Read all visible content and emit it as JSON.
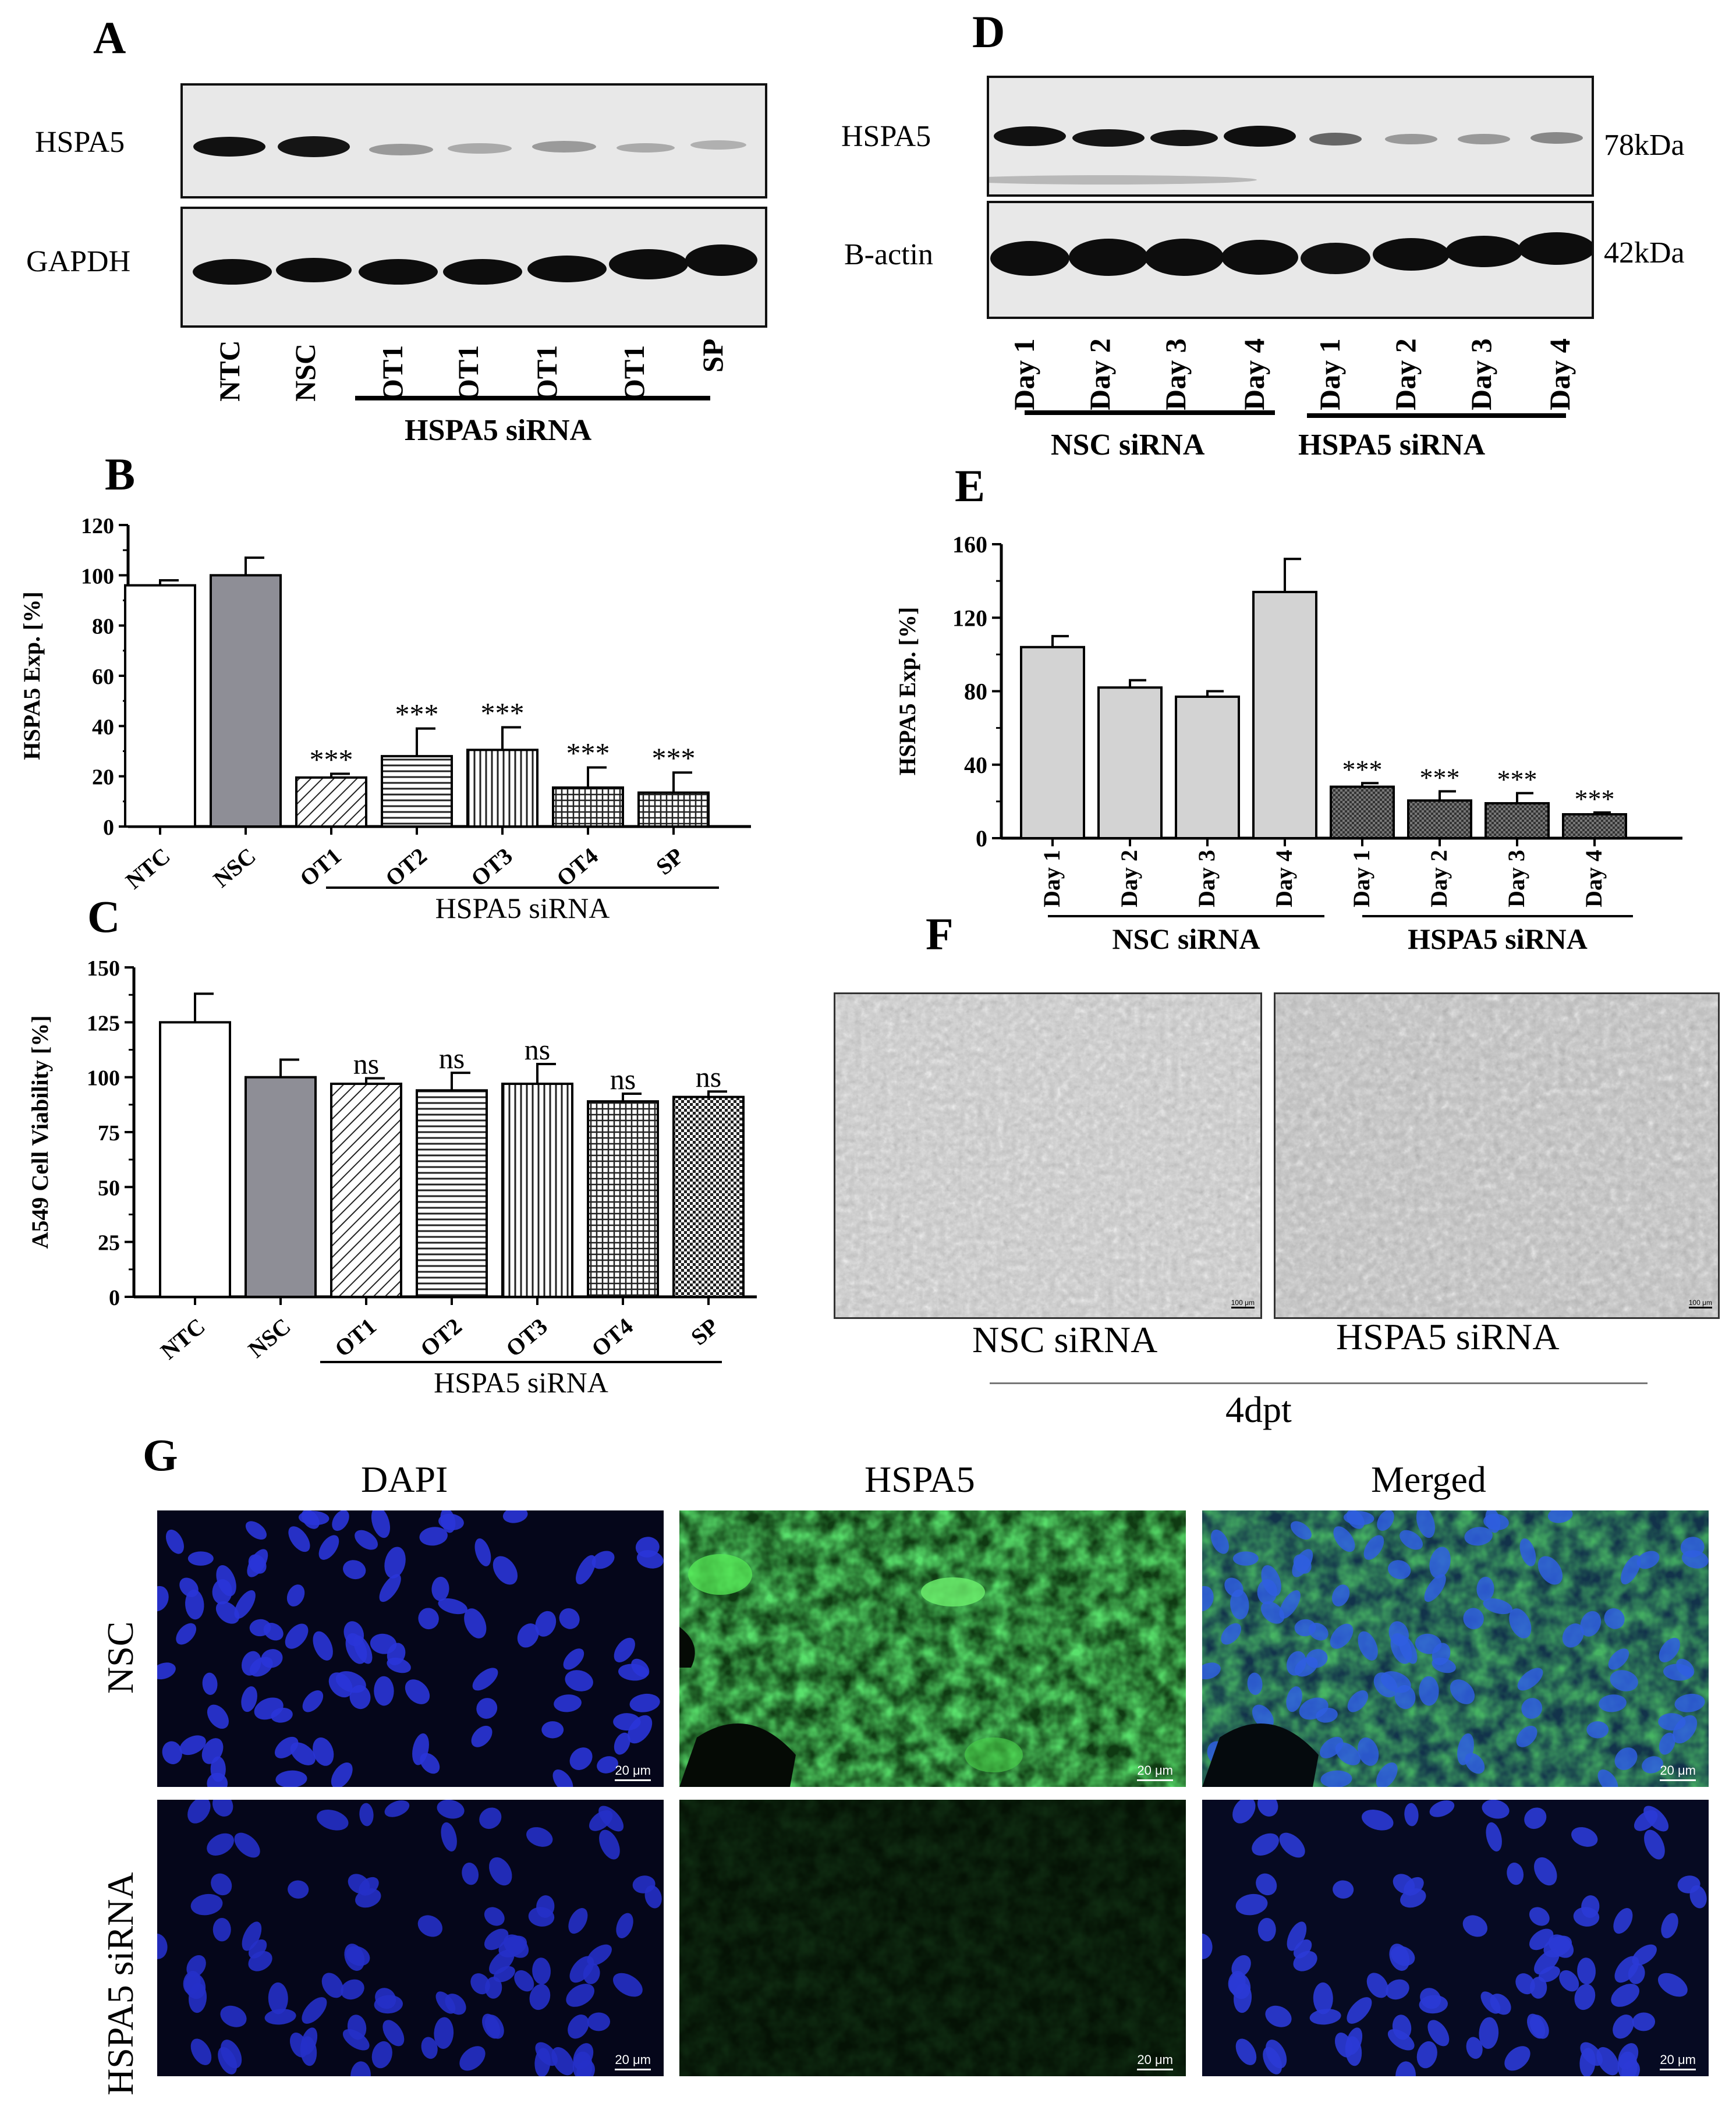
{
  "panels": {
    "A": "A",
    "B": "B",
    "C": "C",
    "D": "D",
    "E": "E",
    "F": "F",
    "G": "G"
  },
  "panelA": {
    "row_labels": [
      "HSPA5",
      "GAPDH"
    ],
    "lanes": [
      "NTC",
      "NSC",
      "OT1",
      "OT1",
      "OT1",
      "OT1",
      "SP"
    ],
    "group_label": "HSPA5 siRNA"
  },
  "panelD": {
    "row_labels": [
      "HSPA5",
      "B-actin"
    ],
    "mw": [
      "78kDa",
      "42kDa"
    ],
    "lanes": [
      "Day 1",
      "Day 2",
      "Day 3",
      "Day 4",
      "Day 1",
      "Day 2",
      "Day 3",
      "Day 4"
    ],
    "groups": [
      "NSC siRNA",
      "HSPA5 siRNA"
    ]
  },
  "panelF": {
    "captions": [
      "NSC siRNA",
      "HSPA5 siRNA"
    ],
    "scale": "100 μm",
    "group_label": "4dpt"
  },
  "panelG": {
    "columns": [
      "DAPI",
      "HSPA5",
      "Merged"
    ],
    "rows": [
      "NSC",
      "HSPA5 siRNA"
    ],
    "scale": "20 μm"
  },
  "chart_data": [
    {
      "id": "B",
      "type": "bar",
      "ylabel": "HSPA5 Exp. [%]",
      "categories": [
        "NTC",
        "NSC",
        "OT1",
        "OT2",
        "OT3",
        "OT4",
        "SP"
      ],
      "values": [
        96,
        100,
        19.5,
        28,
        30.5,
        15.5,
        13.5
      ],
      "errors": [
        2,
        7,
        1.5,
        11,
        9,
        8,
        8
      ],
      "annotations": [
        "",
        "",
        "***",
        "***",
        "***",
        "***",
        "***"
      ],
      "fills": [
        "white",
        "gray",
        "diag",
        "hlines",
        "vlines",
        "grid",
        "grid"
      ],
      "ylim": [
        0,
        120
      ],
      "yticks": [
        0,
        20,
        40,
        60,
        80,
        100,
        120
      ],
      "group_label": "HSPA5 siRNA"
    },
    {
      "id": "C",
      "type": "bar",
      "ylabel": "A549 Cell Viability [%]",
      "categories": [
        "NTC",
        "NSC",
        "OT1",
        "OT2",
        "OT3",
        "OT4",
        "SP"
      ],
      "values": [
        125,
        100,
        97,
        94,
        97,
        89,
        91
      ],
      "errors": [
        13,
        8,
        2.5,
        8,
        9,
        3.5,
        2.5
      ],
      "annotations": [
        "",
        "",
        "ns",
        "ns",
        "ns",
        "ns",
        "ns"
      ],
      "fills": [
        "white",
        "gray",
        "diag",
        "hlines",
        "vlines",
        "grid",
        "dots"
      ],
      "ylim": [
        0,
        150
      ],
      "yticks": [
        0,
        25,
        50,
        75,
        100,
        125,
        150
      ],
      "group_label": "HSPA5 siRNA"
    },
    {
      "id": "E",
      "type": "bar",
      "ylabel": "HSPA5 Exp. [%]",
      "categories": [
        "Day 1",
        "Day 2",
        "Day 3",
        "Day 4",
        "Day 1",
        "Day 2",
        "Day 3",
        "Day 4"
      ],
      "values": [
        104,
        82,
        77,
        134,
        28,
        20.5,
        19,
        13
      ],
      "errors": [
        6,
        4,
        3,
        18,
        2,
        5,
        5.5,
        1
      ],
      "annotations": [
        "",
        "",
        "",
        "",
        "***",
        "***",
        "***",
        "***"
      ],
      "fills": [
        "lgray",
        "lgray",
        "lgray",
        "lgray",
        "dark",
        "dark",
        "dark",
        "dark"
      ],
      "ylim": [
        0,
        160
      ],
      "yticks": [
        0,
        40,
        80,
        120,
        160
      ],
      "groups": [
        "NSC siRNA",
        "HSPA5 siRNA"
      ]
    }
  ]
}
